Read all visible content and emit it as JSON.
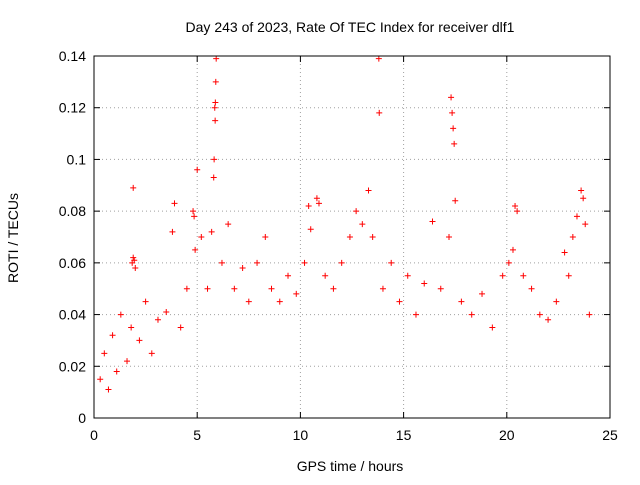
{
  "chart_data": {
    "type": "scatter",
    "title": "Day 243 of 2023, Rate Of TEC Index for receiver dlf1",
    "xlabel": "GPS time / hours",
    "ylabel": "ROTI / TECUs",
    "xlim": [
      0,
      25
    ],
    "ylim": [
      0,
      0.14
    ],
    "x_ticks": [
      "0",
      "5",
      "10",
      "15",
      "20",
      "25"
    ],
    "y_ticks": [
      "0",
      "0.02",
      "0.04",
      "0.06",
      "0.08",
      "0.1",
      "0.12",
      "0.14"
    ],
    "grid": true,
    "marker": "+",
    "color": "#ff0000",
    "series": [
      {
        "points": [
          [
            0.3,
            0.015
          ],
          [
            0.5,
            0.025
          ],
          [
            0.7,
            0.011
          ],
          [
            0.9,
            0.032
          ],
          [
            1.1,
            0.018
          ],
          [
            1.3,
            0.04
          ],
          [
            1.6,
            0.022
          ],
          [
            1.8,
            0.035
          ],
          [
            1.85,
            0.06
          ],
          [
            1.9,
            0.062
          ],
          [
            1.95,
            0.061
          ],
          [
            2.0,
            0.058
          ],
          [
            1.9,
            0.089
          ],
          [
            2.2,
            0.03
          ],
          [
            2.5,
            0.045
          ],
          [
            2.8,
            0.025
          ],
          [
            3.1,
            0.038
          ],
          [
            3.5,
            0.041
          ],
          [
            3.9,
            0.083
          ],
          [
            3.8,
            0.072
          ],
          [
            4.2,
            0.035
          ],
          [
            4.5,
            0.05
          ],
          [
            4.8,
            0.08
          ],
          [
            4.85,
            0.078
          ],
          [
            4.9,
            0.065
          ],
          [
            5.0,
            0.096
          ],
          [
            5.2,
            0.07
          ],
          [
            5.5,
            0.05
          ],
          [
            5.7,
            0.072
          ],
          [
            5.8,
            0.093
          ],
          [
            5.82,
            0.1
          ],
          [
            5.85,
            0.12
          ],
          [
            5.88,
            0.122
          ],
          [
            5.9,
            0.13
          ],
          [
            5.92,
            0.139
          ],
          [
            5.87,
            0.115
          ],
          [
            6.2,
            0.06
          ],
          [
            6.5,
            0.075
          ],
          [
            6.8,
            0.05
          ],
          [
            7.2,
            0.058
          ],
          [
            7.5,
            0.045
          ],
          [
            7.9,
            0.06
          ],
          [
            8.3,
            0.07
          ],
          [
            8.6,
            0.05
          ],
          [
            9.0,
            0.045
          ],
          [
            9.4,
            0.055
          ],
          [
            9.8,
            0.048
          ],
          [
            10.2,
            0.06
          ],
          [
            10.4,
            0.082
          ],
          [
            10.5,
            0.073
          ],
          [
            10.8,
            0.085
          ],
          [
            10.9,
            0.083
          ],
          [
            11.2,
            0.055
          ],
          [
            11.6,
            0.05
          ],
          [
            12.0,
            0.06
          ],
          [
            12.4,
            0.07
          ],
          [
            12.7,
            0.08
          ],
          [
            13.0,
            0.075
          ],
          [
            13.3,
            0.088
          ],
          [
            13.5,
            0.07
          ],
          [
            13.8,
            0.139
          ],
          [
            13.82,
            0.118
          ],
          [
            14.0,
            0.05
          ],
          [
            14.4,
            0.06
          ],
          [
            14.8,
            0.045
          ],
          [
            15.2,
            0.055
          ],
          [
            15.6,
            0.04
          ],
          [
            16.0,
            0.052
          ],
          [
            16.4,
            0.076
          ],
          [
            16.8,
            0.05
          ],
          [
            17.3,
            0.124
          ],
          [
            17.35,
            0.118
          ],
          [
            17.4,
            0.112
          ],
          [
            17.45,
            0.106
          ],
          [
            17.5,
            0.084
          ],
          [
            17.2,
            0.07
          ],
          [
            17.8,
            0.045
          ],
          [
            18.3,
            0.04
          ],
          [
            18.8,
            0.048
          ],
          [
            19.3,
            0.035
          ],
          [
            19.8,
            0.055
          ],
          [
            20.1,
            0.06
          ],
          [
            20.3,
            0.065
          ],
          [
            20.4,
            0.082
          ],
          [
            20.5,
            0.08
          ],
          [
            20.8,
            0.055
          ],
          [
            21.2,
            0.05
          ],
          [
            21.6,
            0.04
          ],
          [
            22.0,
            0.038
          ],
          [
            22.4,
            0.045
          ],
          [
            22.8,
            0.064
          ],
          [
            23.0,
            0.055
          ],
          [
            23.2,
            0.07
          ],
          [
            23.4,
            0.078
          ],
          [
            23.6,
            0.088
          ],
          [
            23.7,
            0.085
          ],
          [
            23.8,
            0.075
          ],
          [
            24.0,
            0.04
          ]
        ]
      }
    ]
  }
}
